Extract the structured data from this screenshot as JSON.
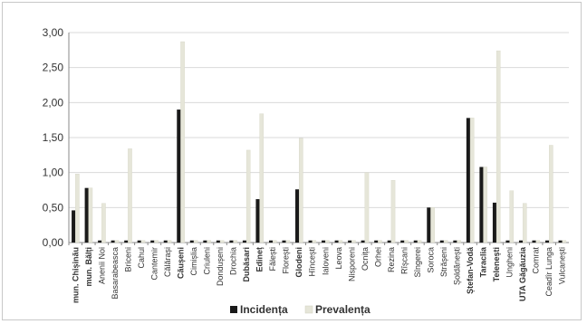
{
  "chart_data": {
    "type": "bar",
    "categories": [
      "mun. Chișinău",
      "mun. Bălți",
      "Anenii Noi",
      "Basarabeasca",
      "Briceni",
      "Cahul",
      "Cantemir",
      "Călărași",
      "Căușeni",
      "Cimișlia",
      "Criuleni",
      "Dondușeni",
      "Drochia",
      "Dubăsari",
      "Edineț",
      "Fălești",
      "Florești",
      "Glodeni",
      "Hîncești",
      "Ialoveni",
      "Leova",
      "Nisporeni",
      "Ocnița",
      "Orhei",
      "Rezina",
      "Rîșcani",
      "Sîngerei",
      "Soroca",
      "Strășeni",
      "Șoldănești",
      "Ștefan-Vodă",
      "Taraclia",
      "Telenești",
      "Ungheni",
      "UTA Găgăuzia",
      "Comrat",
      "Ceadîr Lunga",
      "Vulcanești"
    ],
    "bold_categories": [
      "mun. Chișinău",
      "mun. Bălți",
      "Căușeni",
      "Dubăsari",
      "Edineț",
      "Glodeni",
      "Ștefan-Vodă",
      "Taraclia",
      "Telenești",
      "UTA Găgăuzia"
    ],
    "series": [
      {
        "name": "Incidența",
        "color": "#1a1a1a",
        "values": [
          0.46,
          0.78,
          0.03,
          0.03,
          0.03,
          0.03,
          0.03,
          0.03,
          1.9,
          0.03,
          0.03,
          0.03,
          0.03,
          0.03,
          0.62,
          0.03,
          0.03,
          0.76,
          0.03,
          0.03,
          0.03,
          0.03,
          0.03,
          0.03,
          0.03,
          0.03,
          0.03,
          0.5,
          0.03,
          0.03,
          1.78,
          1.08,
          0.57,
          0.03,
          0.03,
          0.03,
          0.03,
          0.03
        ]
      },
      {
        "name": "Prevalența",
        "color": "#e6e6d9",
        "values": [
          0.98,
          0.78,
          0.56,
          0.03,
          1.34,
          0.03,
          0.03,
          0.03,
          2.87,
          0.03,
          0.03,
          0.03,
          0.03,
          1.32,
          1.84,
          0.03,
          0.03,
          1.49,
          0.03,
          0.03,
          0.03,
          0.03,
          1.0,
          0.03,
          0.89,
          0.03,
          0.03,
          0.5,
          0.03,
          0.03,
          1.78,
          1.08,
          2.74,
          0.74,
          0.56,
          0.03,
          1.39,
          0.03
        ]
      }
    ],
    "y_ticks": [
      "0,00",
      "0,50",
      "1,00",
      "1,50",
      "2,00",
      "2,50",
      "3,00"
    ],
    "ylim": [
      0,
      3
    ],
    "grid": true,
    "legend_position": "bottom",
    "title": "",
    "xlabel": "",
    "ylabel": ""
  }
}
